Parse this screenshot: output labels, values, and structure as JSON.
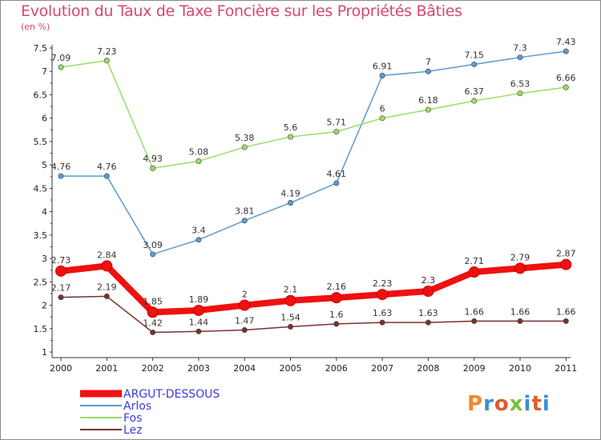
{
  "title": "Evolution du Taux de Taxe Foncière sur les Propriétés Bâties",
  "subtitle": "(en %)",
  "logo": {
    "text": "Proxiti",
    "colors": [
      "#f08a2a",
      "#3a8fd0",
      "#e05a2a",
      "#7abf3a",
      "#3a8fd0",
      "#e05a2a",
      "#3a8fd0"
    ]
  },
  "colors": {
    "title": "#d6476e",
    "legend_text": "#3a3adf",
    "axis": "#333333"
  },
  "chart_data": {
    "type": "line",
    "x": [
      "2000",
      "2001",
      "2002",
      "2003",
      "2004",
      "2005",
      "2006",
      "2007",
      "2008",
      "2009",
      "2010",
      "2011"
    ],
    "ylim": [
      1,
      7.5
    ],
    "yticks": [
      "1",
      "1.5",
      "2",
      "2.5",
      "3",
      "3.5",
      "4",
      "4.5",
      "5",
      "5.5",
      "6",
      "6.5",
      "7",
      "7.5"
    ],
    "grid": false,
    "legend_position": "bottom-left",
    "series": [
      {
        "name": "ARGUT-DESSOUS",
        "color": "#ee1111",
        "width": "thick",
        "values": [
          2.73,
          2.84,
          1.85,
          1.89,
          2,
          2.1,
          2.16,
          2.23,
          2.3,
          2.71,
          2.79,
          2.87
        ],
        "labels": [
          "2.73",
          "2.84",
          "1.85",
          "1.89",
          "2",
          "2.1",
          "2.16",
          "2.23",
          "2.3",
          "2.71",
          "2.79",
          "2.87"
        ]
      },
      {
        "name": "Arlos",
        "color": "#5b9bd0",
        "width": "thin",
        "values": [
          4.76,
          4.76,
          3.09,
          3.4,
          3.81,
          4.19,
          4.61,
          6.91,
          7,
          7.15,
          7.3,
          7.43
        ],
        "labels": [
          "4.76",
          "4.76",
          "3.09",
          "3.4",
          "3.81",
          "4.19",
          "4.61",
          "6.91",
          "7",
          "7.15",
          "7.3",
          "7.43"
        ]
      },
      {
        "name": "Fos",
        "color": "#99dd66",
        "width": "thin",
        "values": [
          7.09,
          7.23,
          4.93,
          5.08,
          5.38,
          5.6,
          5.71,
          6,
          6.18,
          6.37,
          6.53,
          6.66
        ],
        "labels": [
          "7.09",
          "7.23",
          "4.93",
          "5.08",
          "5.38",
          "5.6",
          "5.71",
          "6",
          "6.18",
          "6.37",
          "6.53",
          "6.66"
        ]
      },
      {
        "name": "Lez",
        "color": "#7a3030",
        "width": "thin",
        "values": [
          2.17,
          2.19,
          1.42,
          1.44,
          1.47,
          1.54,
          1.6,
          1.63,
          1.63,
          1.66,
          1.66,
          1.66
        ],
        "labels": [
          "2.17",
          "2.19",
          "1.42",
          "1.44",
          "1.47",
          "1.54",
          "1.6",
          "1.63",
          "1.63",
          "1.66",
          "1.66",
          "1.66"
        ]
      }
    ]
  }
}
